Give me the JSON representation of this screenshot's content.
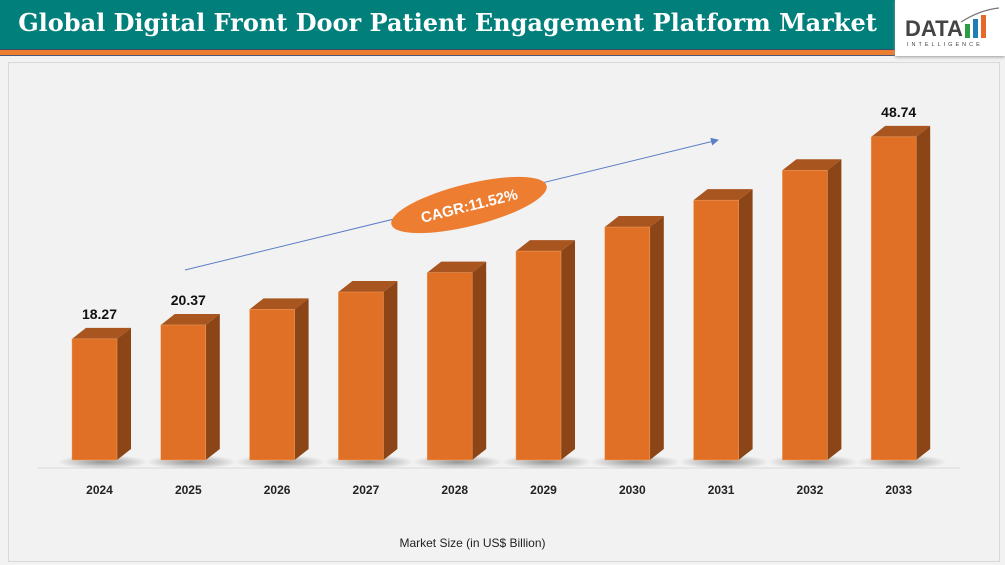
{
  "title": "Global Digital Front Door Patient Engagement Platform Market",
  "logo": {
    "text": "DATA",
    "subtext": "INTELLIGENCE"
  },
  "colors": {
    "title_bg": "#007f7b",
    "accent": "#ed7d31",
    "bar_front": "#e07026",
    "bar_side": "#8c4516",
    "bar_top": "#a85520",
    "arrow": "#5b7fc7"
  },
  "chart_data": {
    "type": "bar",
    "title": "Global Digital Front Door Patient Engagement Platform Market",
    "xlabel": "Market Size (in US$ Billion)",
    "ylabel": "",
    "categories": [
      "2024",
      "2025",
      "2026",
      "2027",
      "2028",
      "2029",
      "2030",
      "2031",
      "2032",
      "2033"
    ],
    "values": [
      18.27,
      20.37,
      22.72,
      25.34,
      28.26,
      31.51,
      35.14,
      39.19,
      43.7,
      48.74
    ],
    "data_labels": {
      "2024": "18.27",
      "2025": "20.37",
      "2033": "48.74"
    },
    "annotation": "CAGR:11.52%",
    "style": "3d-column",
    "grid": false,
    "legend": "none"
  }
}
